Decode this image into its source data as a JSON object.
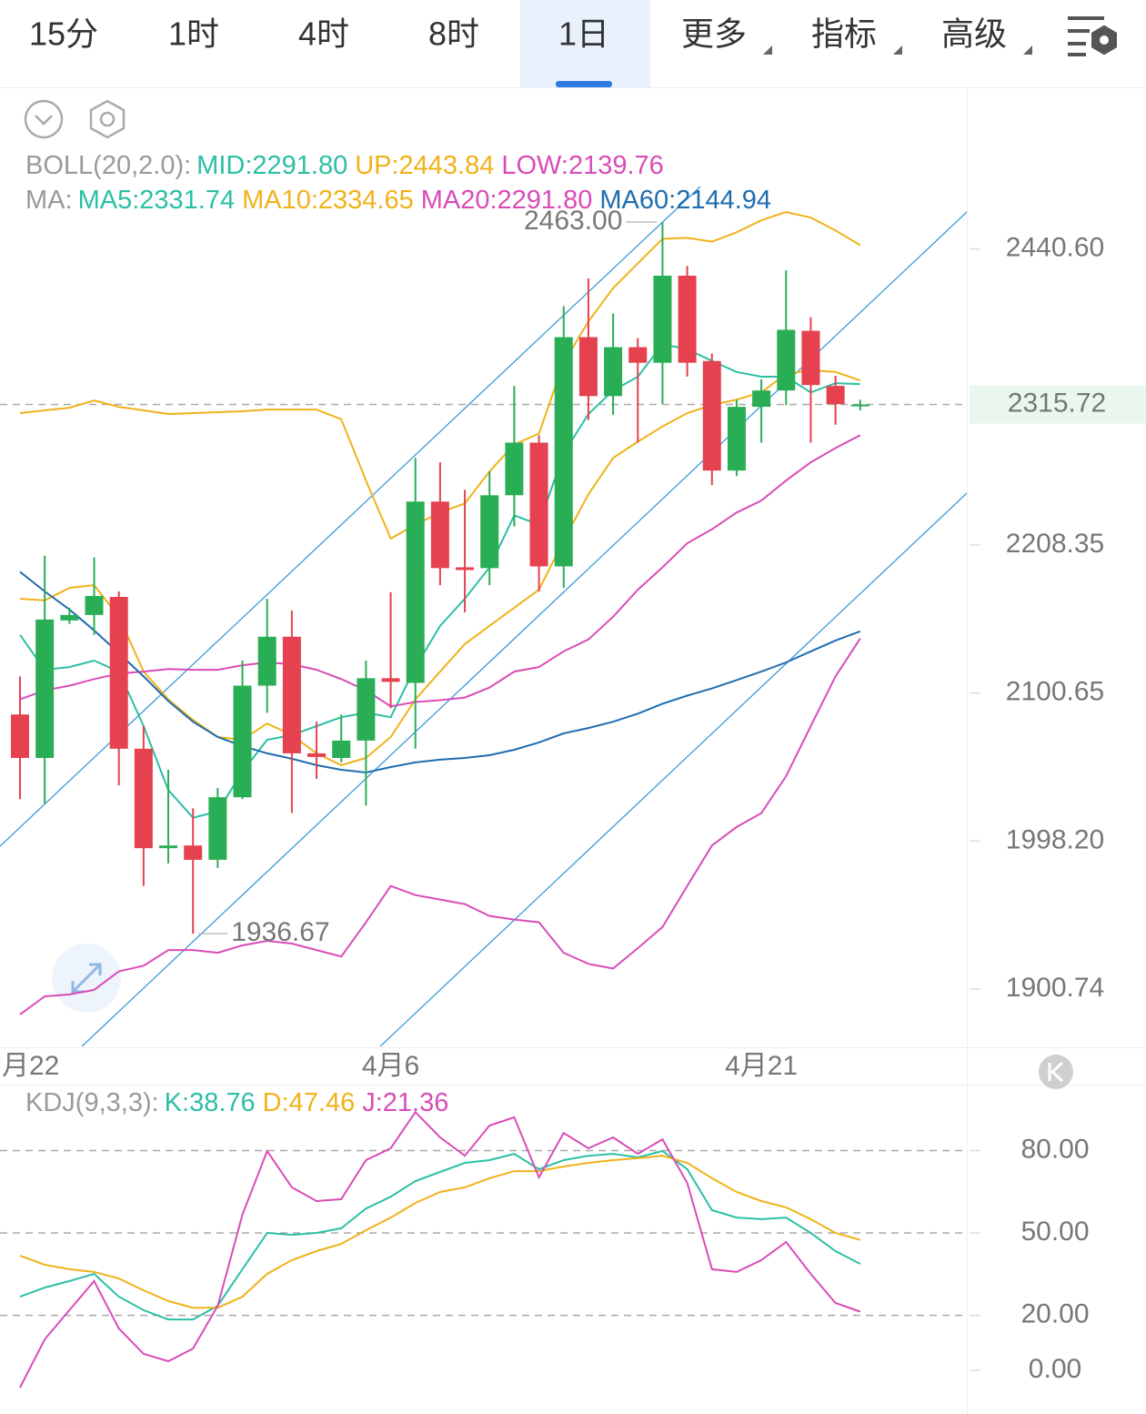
{
  "tabs": [
    {
      "label": "15分"
    },
    {
      "label": "1时"
    },
    {
      "label": "4时"
    },
    {
      "label": "8时"
    },
    {
      "label": "1日"
    },
    {
      "label": "更多",
      "menu": true
    },
    {
      "label": "指标",
      "menu": true
    },
    {
      "label": "高级",
      "menu": true
    }
  ],
  "active_tab": 4,
  "chart_data": [
    {
      "type": "candlestick",
      "legend_rows": [
        {
          "title": "BOLL(20,2.0):",
          "items": [
            {
              "text": "MID:2291.80",
              "color": "#2cbfa5"
            },
            {
              "text": "UP:2443.84",
              "color": "#f0b21a"
            },
            {
              "text": "LOW:2139.76",
              "color": "#d94cb8"
            }
          ]
        },
        {
          "title": "MA:",
          "items": [
            {
              "text": "MA5:2331.74",
              "color": "#2cbfa5"
            },
            {
              "text": "MA10:2334.65",
              "color": "#f0b21a"
            },
            {
              "text": "MA20:2291.80",
              "color": "#d94cb8"
            },
            {
              "text": "MA60:2144.94",
              "color": "#1f6db0"
            }
          ]
        }
      ],
      "categories": [
        "月22",
        null,
        null,
        null,
        null,
        null,
        null,
        null,
        null,
        null,
        null,
        null,
        null,
        null,
        null,
        "4月6",
        null,
        null,
        null,
        null,
        null,
        null,
        null,
        null,
        null,
        null,
        null,
        null,
        null,
        null,
        "4月21",
        null,
        null,
        null,
        null
      ],
      "open": [
        2085.5,
        2055.1,
        2152.8,
        2156.8,
        2170.0,
        2061.5,
        1993.4,
        1995.2,
        1985.6,
        2028.0,
        2105.9,
        2141.0,
        2058.3,
        2055.1,
        2067.2,
        2111.2,
        2107.9,
        2241.0,
        2191.8,
        2191.2,
        2245.8,
        2286.1,
        2192.5,
        2369.0,
        2322.3,
        2361.0,
        2348.6,
        2418.7,
        2350.0,
        2264.6,
        2313.9,
        2326.7,
        2374.1,
        2330.3,
        2315.3
      ],
      "high": [
        2112.5,
        2200.4,
        2162.1,
        2199.1,
        2174.0,
        2077.3,
        2046.9,
        2020.4,
        2034.3,
        2123.8,
        2168.7,
        2160.1,
        2080.4,
        2085.5,
        2123.8,
        2173.4,
        2274.3,
        2270.9,
        2250.0,
        2263.9,
        2330.3,
        2291.7,
        2393.9,
        2416.5,
        2388.0,
        2368.3,
        2463.0,
        2426.7,
        2355.9,
        2319.5,
        2335.4,
        2423.1,
        2385.1,
        2338.3,
        2319.5
      ],
      "low": [
        2026.7,
        2023.5,
        2150.2,
        2142.3,
        2036.2,
        1968.1,
        1983.2,
        1936.67,
        1980.2,
        2026.7,
        2086.7,
        2017.2,
        2040.6,
        2052.0,
        2022.3,
        2089.9,
        2061.5,
        2178.6,
        2158.8,
        2178.6,
        2222.2,
        2174.0,
        2176.6,
        2303.5,
        2307.7,
        2286.1,
        2316.0,
        2337.6,
        2253.5,
        2260.4,
        2286.1,
        2315.3,
        2286.1,
        2300.0,
        2311.1
      ],
      "close": [
        2055.1,
        2153.5,
        2156.8,
        2170.7,
        2061.5,
        1993.4,
        1995.2,
        1985.6,
        2028.0,
        2105.9,
        2141.0,
        2058.3,
        2055.8,
        2067.2,
        2111.2,
        2108.6,
        2241.0,
        2191.2,
        2189.8,
        2245.8,
        2286.1,
        2192.5,
        2369.0,
        2322.3,
        2361.0,
        2348.6,
        2418.7,
        2348.6,
        2264.6,
        2313.9,
        2326.7,
        2374.9,
        2331.0,
        2316.0,
        2315.72
      ],
      "up_color": "#2aae55",
      "down_color": "#e5414f",
      "series": [
        {
          "color": "#2cbfa5",
          "values": [
            2142.3,
            2117.2,
            2119.2,
            2123.8,
            2115.9,
            2077.3,
            2033.0,
            2014.0,
            2018.4,
            2045.6,
            2067.8,
            2071.0,
            2077.3,
            2083.6,
            2086.7,
            2083.6,
            2119.2,
            2148.9,
            2168.7,
            2191.8,
            2230.6,
            2223.6,
            2277.8,
            2308.3,
            2326.7,
            2337.6,
            2363.2,
            2359.5,
            2350.0,
            2341.3,
            2337.6,
            2337.6,
            2325.2,
            2332.5,
            2331.74
          ]
        },
        {
          "color": "#f0b21a",
          "values": [
            2168.7,
            2167.4,
            2176.6,
            2178.6,
            2155.5,
            2115.9,
            2096.2,
            2081.7,
            2069.7,
            2067.8,
            2079.2,
            2071.0,
            2058.3,
            2050.1,
            2055.1,
            2069.7,
            2096.2,
            2115.9,
            2135.7,
            2148.9,
            2162.1,
            2175.3,
            2211.8,
            2246.5,
            2274.3,
            2286.8,
            2298.6,
            2309.0,
            2315.3,
            2319.5,
            2325.2,
            2339.8,
            2342.7,
            2341.3,
            2334.65
          ]
        },
        {
          "color": "#d94cb8",
          "values": [
            2096.2,
            2102.6,
            2105.9,
            2110.6,
            2114.5,
            2115.9,
            2117.8,
            2117.2,
            2117.2,
            2120.5,
            2122.5,
            2121.2,
            2117.2,
            2110.6,
            2102.6,
            2091.2,
            2094.3,
            2095.6,
            2097.5,
            2104.6,
            2115.9,
            2119.2,
            2130.4,
            2139.0,
            2155.5,
            2175.3,
            2191.8,
            2209.7,
            2220.1,
            2232.7,
            2241.7,
            2257.0,
            2270.9,
            2281.9,
            2291.8
          ]
        },
        {
          "color": "#1f6db0",
          "values": [
            2188.5,
            2174.0,
            2160.8,
            2145.6,
            2129.1,
            2112.5,
            2095.0,
            2080.4,
            2069.7,
            2063.4,
            2058.3,
            2054.5,
            2050.1,
            2046.9,
            2045.0,
            2048.8,
            2052.0,
            2053.9,
            2055.1,
            2057.0,
            2060.8,
            2065.9,
            2072.2,
            2076.0,
            2080.4,
            2086.1,
            2093.1,
            2098.8,
            2103.9,
            2109.9,
            2115.9,
            2122.5,
            2130.4,
            2138.3,
            2144.94
          ]
        },
        {
          "color": "#f0b21a",
          "values": [
            2309.0,
            2311.1,
            2313.2,
            2318.8,
            2313.9,
            2311.1,
            2308.3,
            2309.0,
            2309.7,
            2310.4,
            2311.8,
            2311.8,
            2311.8,
            2304.2,
            2257.0,
            2213.2,
            2223.6,
            2232.7,
            2239.6,
            2263.9,
            2284.7,
            2293.1,
            2348.6,
            2381.5,
            2408.5,
            2428.9,
            2449.0,
            2449.8,
            2446.7,
            2454.4,
            2464.4,
            2471.3,
            2466.7,
            2455.9,
            2443.84
          ]
        },
        {
          "color": "#d94cb8",
          "values": [
            1884.5,
            1896.1,
            1897.3,
            1900.2,
            1912.2,
            1915.8,
            1926.0,
            1926.0,
            1924.2,
            1929.0,
            1932.0,
            1930.2,
            1926.0,
            1921.8,
            1944.1,
            1968.1,
            1962.1,
            1959.1,
            1956.1,
            1948.3,
            1945.9,
            1944.1,
            1924.2,
            1917.0,
            1914.0,
            1927.2,
            1941.0,
            1968.1,
            1995.2,
            2007.7,
            2017.2,
            2042.5,
            2077.3,
            2112.5,
            2139.76
          ]
        }
      ],
      "log_scale": true,
      "ylim": [
        1864.3,
        2576.8
      ],
      "yticks": [
        {
          "value": 2440.6,
          "label": "2440.60"
        },
        2208.35,
        2100.65,
        {
          "value": 1998.2,
          "label": "1998.20"
        },
        1900.74
      ],
      "last_price": 2315.72,
      "max_label": "2463.00",
      "min_label": "1936.67"
    },
    {
      "type": "line",
      "legend_rows": [
        {
          "title": "KDJ(9,3,3):",
          "items": [
            {
              "text": "K:38.76",
              "color": "#2cbfa5"
            },
            {
              "text": "D:47.46",
              "color": "#f0b21a"
            },
            {
              "text": "J:21.36",
              "color": "#d94cb8"
            }
          ]
        }
      ],
      "series": [
        {
          "color": "#2cbfa5",
          "values": [
            26.8,
            30.1,
            32.5,
            35.1,
            26.8,
            21.9,
            18.5,
            18.5,
            23.5,
            36.8,
            50.0,
            49.3,
            50.0,
            51.7,
            58.9,
            63.2,
            68.9,
            72.2,
            75.5,
            76.5,
            78.8,
            73.2,
            76.5,
            78.1,
            78.8,
            77.5,
            79.8,
            73.2,
            58.3,
            55.6,
            55.0,
            55.6,
            50.0,
            43.4,
            38.76
          ]
        },
        {
          "color": "#f0b21a",
          "values": [
            41.7,
            38.4,
            36.8,
            35.8,
            33.4,
            29.1,
            25.2,
            22.8,
            22.8,
            26.8,
            35.1,
            40.1,
            43.4,
            46.0,
            51.0,
            55.6,
            60.9,
            64.9,
            66.6,
            69.9,
            72.5,
            72.5,
            74.2,
            75.5,
            76.5,
            77.2,
            78.1,
            75.5,
            69.9,
            64.9,
            61.6,
            59.3,
            55.0,
            50.0,
            47.46
          ]
        },
        {
          "color": "#d94cb8",
          "values": [
            -6.3,
            11.3,
            21.9,
            32.5,
            15.2,
            6.0,
            3.3,
            7.9,
            23.5,
            56.6,
            79.8,
            66.6,
            61.6,
            62.3,
            76.5,
            80.8,
            94.0,
            84.8,
            78.1,
            89.1,
            92.1,
            70.2,
            86.4,
            80.8,
            84.8,
            78.8,
            84.1,
            68.2,
            36.8,
            35.8,
            40.1,
            46.7,
            35.1,
            24.5,
            21.36
          ]
        }
      ],
      "ylim": [
        -15.9,
        103
      ],
      "yticks": [
        {
          "value": 80,
          "label": "80.00"
        },
        {
          "value": 50,
          "label": "50.00"
        },
        {
          "value": 20,
          "label": "20.00"
        },
        {
          "value": 0,
          "label": "0.00"
        }
      ],
      "dashed_lines": [
        80,
        50,
        20
      ]
    }
  ]
}
